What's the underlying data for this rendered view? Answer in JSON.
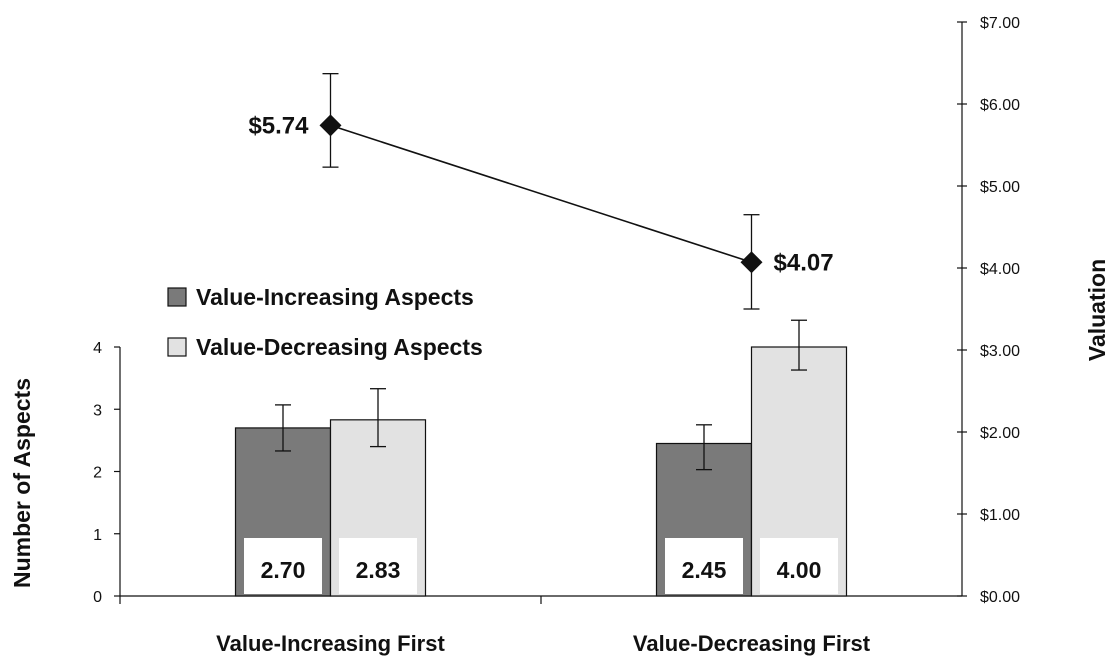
{
  "chart_data": {
    "type": "bar",
    "categories": [
      "Value-Increasing First",
      "Value-Decreasing First"
    ],
    "series": [
      {
        "name": "Value-Increasing Aspects",
        "type": "bar",
        "axis": "left",
        "values": [
          2.7,
          2.45
        ],
        "data_labels": [
          "2.70",
          "2.45"
        ],
        "error_low": [
          2.33,
          2.03
        ],
        "error_high": [
          3.07,
          2.75
        ],
        "color": "#7a7a7a"
      },
      {
        "name": "Value-Decreasing Aspects",
        "type": "bar",
        "axis": "left",
        "values": [
          2.83,
          4.0
        ],
        "data_labels": [
          "2.83",
          "4.00"
        ],
        "error_low": [
          2.4,
          3.63
        ],
        "error_high": [
          3.33,
          4.43
        ],
        "color": "#e2e2e2"
      },
      {
        "name": "Valuation",
        "type": "line",
        "axis": "right",
        "values": [
          5.74,
          4.07
        ],
        "data_labels": [
          "$5.74",
          "$4.07"
        ],
        "error_low": [
          5.23,
          3.5
        ],
        "error_high": [
          6.37,
          4.65
        ],
        "color": "#111111"
      }
    ],
    "left_axis": {
      "label": "Number of Aspects",
      "ylim": [
        0,
        4
      ],
      "ticks": [
        "0",
        "1",
        "2",
        "3",
        "4"
      ]
    },
    "right_axis": {
      "label": "Valuation",
      "ylim": [
        0,
        7
      ],
      "ticks": [
        "$0.00",
        "$1.00",
        "$2.00",
        "$3.00",
        "$4.00",
        "$5.00",
        "$6.00",
        "$7.00"
      ]
    },
    "legend": {
      "position": "center-left",
      "entries": [
        "Value-Increasing Aspects",
        "Value-Decreasing Aspects"
      ]
    },
    "grid": false
  }
}
